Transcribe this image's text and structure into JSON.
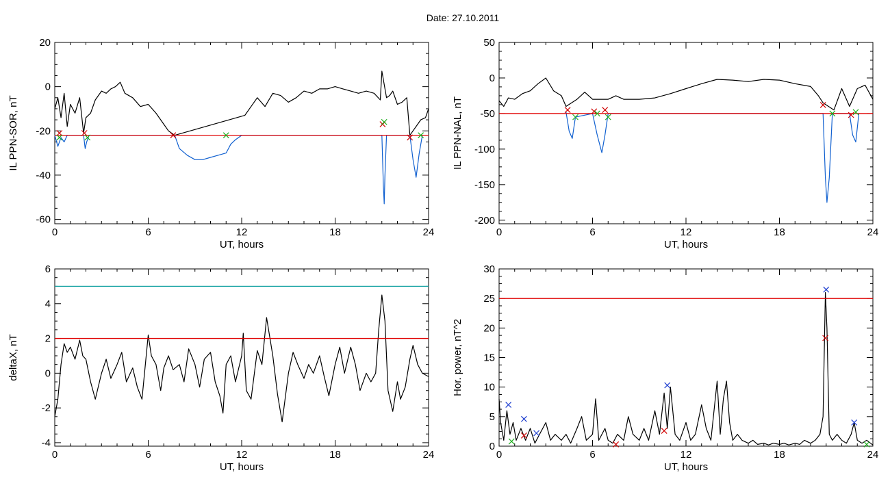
{
  "header": {
    "title": "Date:  27.10.2011"
  },
  "chart_data": [
    {
      "id": "sor",
      "type": "line",
      "xlabel": "UT, hours",
      "ylabel": "IL PPN-SOR, nT",
      "xlim": [
        0,
        24
      ],
      "ylim": [
        -62,
        20
      ],
      "xticks": [
        0,
        6,
        12,
        18,
        24
      ],
      "yticks": [
        -60,
        -40,
        -20,
        0,
        20
      ],
      "threshold": {
        "value": -22,
        "color": "#e00000"
      },
      "series": [
        {
          "color": "#000000",
          "x": [
            0,
            0.2,
            0.4,
            0.6,
            0.8,
            1.0,
            1.3,
            1.6,
            1.85,
            2.0,
            2.3,
            2.6,
            3.0,
            3.3,
            3.6,
            3.9,
            4.2,
            4.5,
            5.0,
            5.5,
            6.0,
            6.5,
            7.0,
            7.3,
            7.7,
            12.2,
            12.6,
            13.0,
            13.5,
            14.0,
            14.5,
            15.0,
            15.5,
            16.0,
            16.5,
            17.0,
            17.5,
            18.0,
            18.5,
            19.0,
            19.5,
            20.0,
            20.5,
            20.9,
            21.0,
            21.3,
            21.5,
            21.7,
            22.0,
            22.3,
            22.6,
            22.8,
            23.5,
            23.8,
            24.0
          ],
          "y": [
            -10,
            -5,
            -14,
            -3,
            -18,
            -8,
            -12,
            -5,
            -21,
            -14,
            -12,
            -6,
            -2,
            -3,
            -1,
            0,
            2,
            -3,
            -5,
            -9,
            -8,
            -12,
            -17,
            -20,
            -22,
            -13,
            -9,
            -5,
            -9,
            -3,
            -4,
            -7,
            -5,
            -2,
            -3,
            -1,
            -1,
            0,
            -1,
            -2,
            -3,
            -2,
            -3,
            -6,
            7,
            -5,
            -4,
            -2,
            -8,
            -7,
            -5,
            -22,
            -15,
            -14,
            -10
          ]
        },
        {
          "color": "#1060d0",
          "x": [
            0.0,
            0.2,
            0.4,
            0.6,
            0.8,
            1.85,
            1.95,
            2.05,
            2.2,
            7.7,
            8.0,
            8.5,
            9.0,
            9.5,
            10.0,
            10.5,
            11.0,
            11.3,
            11.6,
            12.0,
            12.2,
            21.0,
            21.1,
            21.15,
            21.2,
            21.3,
            22.8,
            23.0,
            23.2,
            23.4,
            23.6
          ],
          "y": [
            -22,
            -27,
            -23,
            -25,
            -22,
            -22,
            -28,
            -25,
            -22,
            -22,
            -28,
            -31,
            -33,
            -33,
            -32,
            -31,
            -30,
            -26,
            -24,
            -22,
            -22,
            -22,
            -45,
            -53,
            -40,
            -22,
            -22,
            -33,
            -41,
            -30,
            -22
          ]
        }
      ],
      "markers": [
        {
          "x": 0.3,
          "y": -21,
          "color": "#d00000"
        },
        {
          "x": 0.3,
          "y": -23,
          "color": "#20b020"
        },
        {
          "x": 1.9,
          "y": -21,
          "color": "#d00000"
        },
        {
          "x": 2.1,
          "y": -23,
          "color": "#20b020"
        },
        {
          "x": 7.6,
          "y": -22,
          "color": "#d00000"
        },
        {
          "x": 11.0,
          "y": -22,
          "color": "#20b020"
        },
        {
          "x": 21.05,
          "y": -17,
          "color": "#d00000"
        },
        {
          "x": 21.15,
          "y": -16,
          "color": "#20b020"
        },
        {
          "x": 22.8,
          "y": -23,
          "color": "#d00000"
        },
        {
          "x": 23.5,
          "y": -22,
          "color": "#20b020"
        }
      ]
    },
    {
      "id": "nal",
      "type": "line",
      "xlabel": "UT, hours",
      "ylabel": "IL PPN-NAL, nT",
      "xlim": [
        0,
        24
      ],
      "ylim": [
        -205,
        50
      ],
      "xticks": [
        0,
        6,
        12,
        18,
        24
      ],
      "yticks": [
        -200,
        -150,
        -100,
        -50,
        0,
        50
      ],
      "threshold": {
        "value": -50,
        "color": "#e00000"
      },
      "series": [
        {
          "color": "#000000",
          "x": [
            0,
            0.3,
            0.6,
            1.0,
            1.5,
            2.0,
            2.5,
            3.0,
            3.5,
            4.0,
            4.3,
            5.0,
            5.5,
            6.0,
            7.0,
            7.5,
            8.0,
            9.0,
            10.0,
            11.0,
            12.0,
            13.0,
            14.0,
            15.0,
            16.0,
            17.0,
            18.0,
            19.0,
            20.0,
            20.5,
            20.8,
            21.5,
            22.0,
            22.5,
            23.0,
            23.5,
            24.0
          ],
          "y": [
            -32,
            -40,
            -28,
            -30,
            -22,
            -18,
            -8,
            0,
            -18,
            -25,
            -40,
            -30,
            -20,
            -30,
            -30,
            -25,
            -30,
            -30,
            -28,
            -22,
            -15,
            -8,
            -2,
            -3,
            -5,
            -2,
            -3,
            -8,
            -12,
            -25,
            -35,
            -45,
            -15,
            -40,
            -15,
            -10,
            -30
          ]
        },
        {
          "color": "#1060d0",
          "x": [
            4.3,
            4.5,
            4.7,
            4.9,
            6.0,
            6.3,
            6.6,
            6.8,
            7.0,
            20.8,
            20.95,
            21.05,
            21.2,
            21.4,
            22.5,
            22.7,
            22.9,
            23.1
          ],
          "y": [
            -48,
            -75,
            -85,
            -55,
            -50,
            -80,
            -105,
            -80,
            -50,
            -50,
            -140,
            -175,
            -140,
            -50,
            -50,
            -80,
            -90,
            -50
          ]
        }
      ],
      "markers": [
        {
          "x": 4.4,
          "y": -45,
          "color": "#d00000"
        },
        {
          "x": 4.9,
          "y": -55,
          "color": "#20b020"
        },
        {
          "x": 6.1,
          "y": -47,
          "color": "#d00000"
        },
        {
          "x": 6.3,
          "y": -50,
          "color": "#20b020"
        },
        {
          "x": 6.8,
          "y": -45,
          "color": "#d00000"
        },
        {
          "x": 7.0,
          "y": -55,
          "color": "#20b020"
        },
        {
          "x": 20.8,
          "y": -38,
          "color": "#d00000"
        },
        {
          "x": 21.4,
          "y": -50,
          "color": "#20b020"
        },
        {
          "x": 22.6,
          "y": -52,
          "color": "#d00000"
        },
        {
          "x": 22.9,
          "y": -48,
          "color": "#20b020"
        }
      ]
    },
    {
      "id": "deltax",
      "type": "line",
      "xlabel": "UT, hours",
      "ylabel": "deltaX, nT",
      "xlim": [
        0,
        24
      ],
      "ylim": [
        -4.2,
        6
      ],
      "xticks": [
        0,
        6,
        12,
        18,
        24
      ],
      "yticks": [
        -4,
        -2,
        0,
        2,
        4,
        6
      ],
      "threshold": {
        "value": 2,
        "color": "#e00000"
      },
      "threshold2": {
        "value": 5,
        "color": "#10a0a0"
      },
      "series": [
        {
          "color": "#000000",
          "x": [
            0,
            0.2,
            0.4,
            0.6,
            0.8,
            1.0,
            1.3,
            1.6,
            1.8,
            2.0,
            2.3,
            2.6,
            3.0,
            3.3,
            3.6,
            4.0,
            4.3,
            4.6,
            5.0,
            5.3,
            5.6,
            6.0,
            6.2,
            6.5,
            6.8,
            7.0,
            7.3,
            7.6,
            8.0,
            8.3,
            8.6,
            9.0,
            9.3,
            9.6,
            10.0,
            10.3,
            10.6,
            10.8,
            11.0,
            11.3,
            11.6,
            12.0,
            12.1,
            12.3,
            12.6,
            13.0,
            13.3,
            13.6,
            14.0,
            14.3,
            14.6,
            15.0,
            15.3,
            15.6,
            16.0,
            16.3,
            16.6,
            17.0,
            17.3,
            17.6,
            18.0,
            18.3,
            18.6,
            19.0,
            19.3,
            19.6,
            20.0,
            20.3,
            20.6,
            20.8,
            21.0,
            21.2,
            21.4,
            21.7,
            22.0,
            22.2,
            22.5,
            22.8,
            23.0,
            23.3,
            23.6,
            24.0
          ],
          "y": [
            -2.5,
            -1.5,
            0.5,
            1.7,
            1.2,
            1.5,
            0.8,
            1.9,
            1.0,
            0.8,
            -0.5,
            -1.5,
            0.0,
            0.8,
            -0.3,
            0.5,
            1.2,
            -0.5,
            0.3,
            -0.8,
            -1.5,
            2.2,
            1.0,
            0.5,
            -1.0,
            0.3,
            1.0,
            0.2,
            0.5,
            -0.5,
            1.4,
            0.5,
            -0.8,
            0.8,
            1.2,
            -0.5,
            -1.3,
            -2.3,
            0.5,
            1.0,
            -0.5,
            1.0,
            2.3,
            -1.0,
            -1.5,
            1.3,
            0.5,
            3.2,
            1.0,
            -1.2,
            -2.8,
            0.0,
            1.2,
            0.5,
            -0.3,
            0.5,
            0.0,
            1.0,
            -0.2,
            -1.3,
            0.5,
            1.5,
            0.0,
            1.5,
            0.5,
            -1.0,
            0.0,
            -0.5,
            0.0,
            2.5,
            4.5,
            3.0,
            -1.0,
            -2.2,
            -0.5,
            -1.5,
            -0.8,
            0.8,
            1.6,
            0.5,
            0.0,
            -0.2
          ]
        }
      ],
      "markers": []
    },
    {
      "id": "power",
      "type": "line",
      "xlabel": "UT, hours",
      "ylabel": "Hor. power, nT^2",
      "xlim": [
        0,
        24
      ],
      "ylim": [
        0,
        30
      ],
      "xticks": [
        0,
        6,
        12,
        18,
        24
      ],
      "yticks": [
        0,
        5,
        10,
        15,
        20,
        25,
        30
      ],
      "threshold": {
        "value": 25,
        "color": "#e00000"
      },
      "series": [
        {
          "color": "#000000",
          "x": [
            0,
            0.1,
            0.3,
            0.5,
            0.7,
            0.9,
            1.1,
            1.4,
            1.7,
            2.0,
            2.3,
            2.6,
            3.0,
            3.3,
            3.6,
            4.0,
            4.3,
            4.6,
            5.0,
            5.3,
            5.6,
            6.0,
            6.2,
            6.4,
            6.8,
            7.0,
            7.3,
            7.6,
            8.0,
            8.3,
            8.6,
            9.0,
            9.3,
            9.6,
            10.0,
            10.3,
            10.6,
            10.8,
            11.0,
            11.3,
            11.6,
            12.0,
            12.3,
            12.6,
            13.0,
            13.3,
            13.6,
            14.0,
            14.2,
            14.4,
            14.6,
            14.8,
            15.0,
            15.3,
            15.6,
            16.0,
            16.3,
            16.6,
            17.0,
            17.3,
            17.6,
            18.0,
            18.3,
            18.6,
            19.0,
            19.3,
            19.6,
            20.0,
            20.3,
            20.6,
            20.8,
            20.95,
            21.05,
            21.2,
            21.4,
            21.7,
            22.0,
            22.3,
            22.6,
            22.8,
            23.0,
            23.3,
            23.6,
            24.0
          ],
          "y": [
            8,
            4,
            1,
            6,
            2,
            4,
            1,
            3,
            1,
            3,
            0.5,
            2,
            4,
            1,
            2,
            1,
            2,
            0.5,
            3,
            5,
            1,
            2,
            8,
            1,
            3,
            1,
            0.5,
            2,
            1,
            5,
            2,
            1,
            3,
            1,
            6,
            2,
            9,
            3,
            10,
            2,
            1,
            4,
            1,
            2,
            7,
            3,
            1,
            11,
            2,
            8,
            11,
            4,
            1,
            2,
            1,
            0.5,
            1,
            0.3,
            0.5,
            0.2,
            0.5,
            0.3,
            0.5,
            0.2,
            0.5,
            0.3,
            1,
            0.5,
            1,
            2,
            5,
            26,
            20,
            2,
            1,
            2,
            1,
            0.5,
            2,
            4,
            1,
            0.5,
            1,
            0.2
          ]
        }
      ],
      "markers": [
        {
          "x": 0.6,
          "y": 7,
          "color": "#2040d0"
        },
        {
          "x": 1.6,
          "y": 4.6,
          "color": "#2040d0"
        },
        {
          "x": 1.6,
          "y": 1.8,
          "color": "#d00000"
        },
        {
          "x": 2.4,
          "y": 2.2,
          "color": "#2040d0"
        },
        {
          "x": 0.8,
          "y": 0.8,
          "color": "#20b020"
        },
        {
          "x": 10.6,
          "y": 2.6,
          "color": "#d00000"
        },
        {
          "x": 10.8,
          "y": 10.3,
          "color": "#2040d0"
        },
        {
          "x": 21.0,
          "y": 26.5,
          "color": "#2040d0"
        },
        {
          "x": 20.95,
          "y": 18.3,
          "color": "#d00000"
        },
        {
          "x": 22.8,
          "y": 4.0,
          "color": "#2040d0"
        },
        {
          "x": 7.5,
          "y": 0.3,
          "color": "#d00000"
        },
        {
          "x": 23.6,
          "y": 0.3,
          "color": "#20b020"
        }
      ]
    }
  ]
}
